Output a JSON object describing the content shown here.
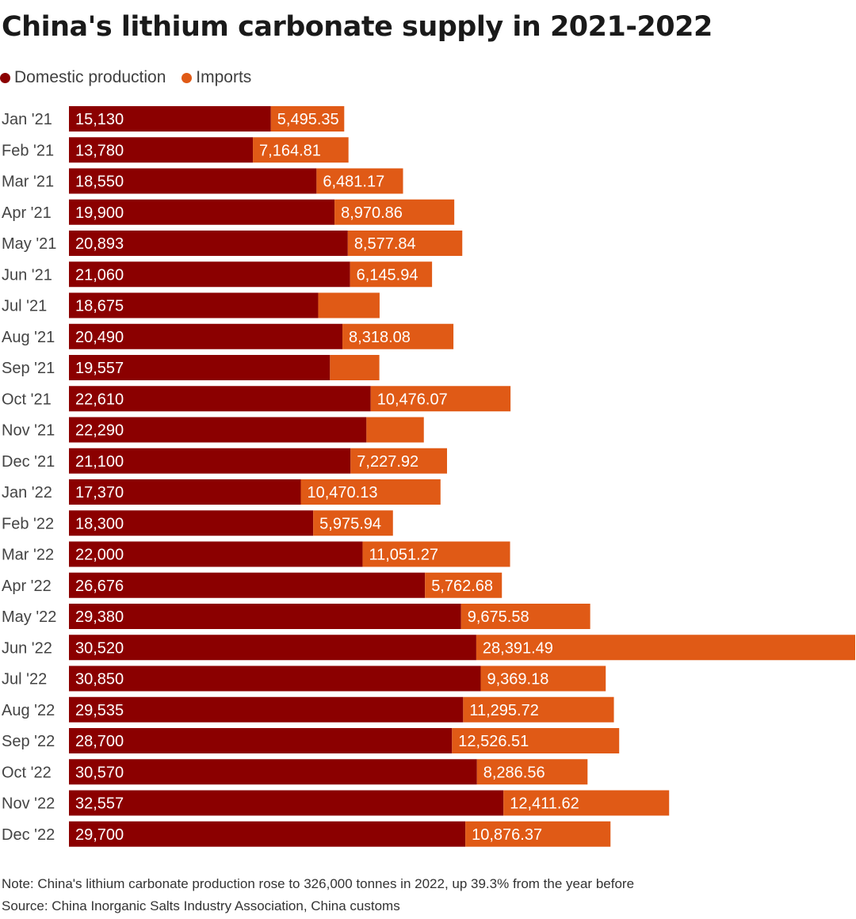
{
  "chart_data": {
    "type": "bar",
    "orientation": "horizontal",
    "stacked": true,
    "title": "China's lithium carbonate supply in 2021-2022",
    "categories": [
      "Jan '21",
      "Feb '21",
      "Mar '21",
      "Apr '21",
      "May '21",
      "Jun '21",
      "Jul '21",
      "Aug '21",
      "Sep '21",
      "Oct '21",
      "Nov '21",
      "Dec '21",
      "Jan '22",
      "Feb '22",
      "Mar '22",
      "Apr '22",
      "May '22",
      "Jun '22",
      "Jul '22",
      "Aug '22",
      "Sep '22",
      "Oct '22",
      "Nov '22",
      "Dec '22"
    ],
    "series": [
      {
        "name": "Domestic production",
        "color": "#8b0000",
        "values": [
          15130,
          13780,
          18550,
          19900,
          20893,
          21060,
          18675,
          20490,
          19557,
          22610,
          22290,
          21100,
          17370,
          18300,
          22000,
          26676,
          29380,
          30520,
          30850,
          29535,
          28700,
          30570,
          32557,
          29700
        ],
        "labels": [
          "15,130",
          "13,780",
          "18,550",
          "19,900",
          "20,893",
          "21,060",
          "18,675",
          "20,490",
          "19,557",
          "22,610",
          "22,290",
          "21,100",
          "17,370",
          "18,300",
          "22,000",
          "26,676",
          "29,380",
          "30,520",
          "30,850",
          "29,535",
          "28,700",
          "30,570",
          "32,557",
          "29,700"
        ]
      },
      {
        "name": "Imports",
        "color": "#e05a16",
        "values": [
          5495.35,
          7164.81,
          6481.17,
          8970.86,
          8577.84,
          6145.94,
          4600,
          8318.08,
          3700,
          10476.07,
          4300,
          7227.92,
          10470.13,
          5975.94,
          11051.27,
          5762.68,
          9675.58,
          28391.49,
          9369.18,
          11295.72,
          12526.51,
          8286.56,
          12411.62,
          10876.37
        ],
        "labels": [
          "5,495.35",
          "7,164.81",
          "6,481.17",
          "8,970.86",
          "8,577.84",
          "6,145.94",
          "",
          "8,318.08",
          "",
          "10,476.07",
          "",
          "7,227.92",
          "10,470.13",
          "5,975.94",
          "11,051.27",
          "5,762.68",
          "9,675.58",
          "28,391.49",
          "9,369.18",
          "11,295.72",
          "12,526.51",
          "8,286.56",
          "12,411.62",
          "10,876.37"
        ]
      }
    ],
    "xlim": [
      0,
      58911.49
    ],
    "xlabel": "",
    "ylabel": "",
    "grid": false,
    "legend_position": "top-left"
  },
  "footer": {
    "note": "Note: China's lithium carbonate production rose to 326,000 tonnes in 2022, up 39.3% from the year before",
    "source": "Source: China Inorganic Salts Industry Association, China customs"
  }
}
